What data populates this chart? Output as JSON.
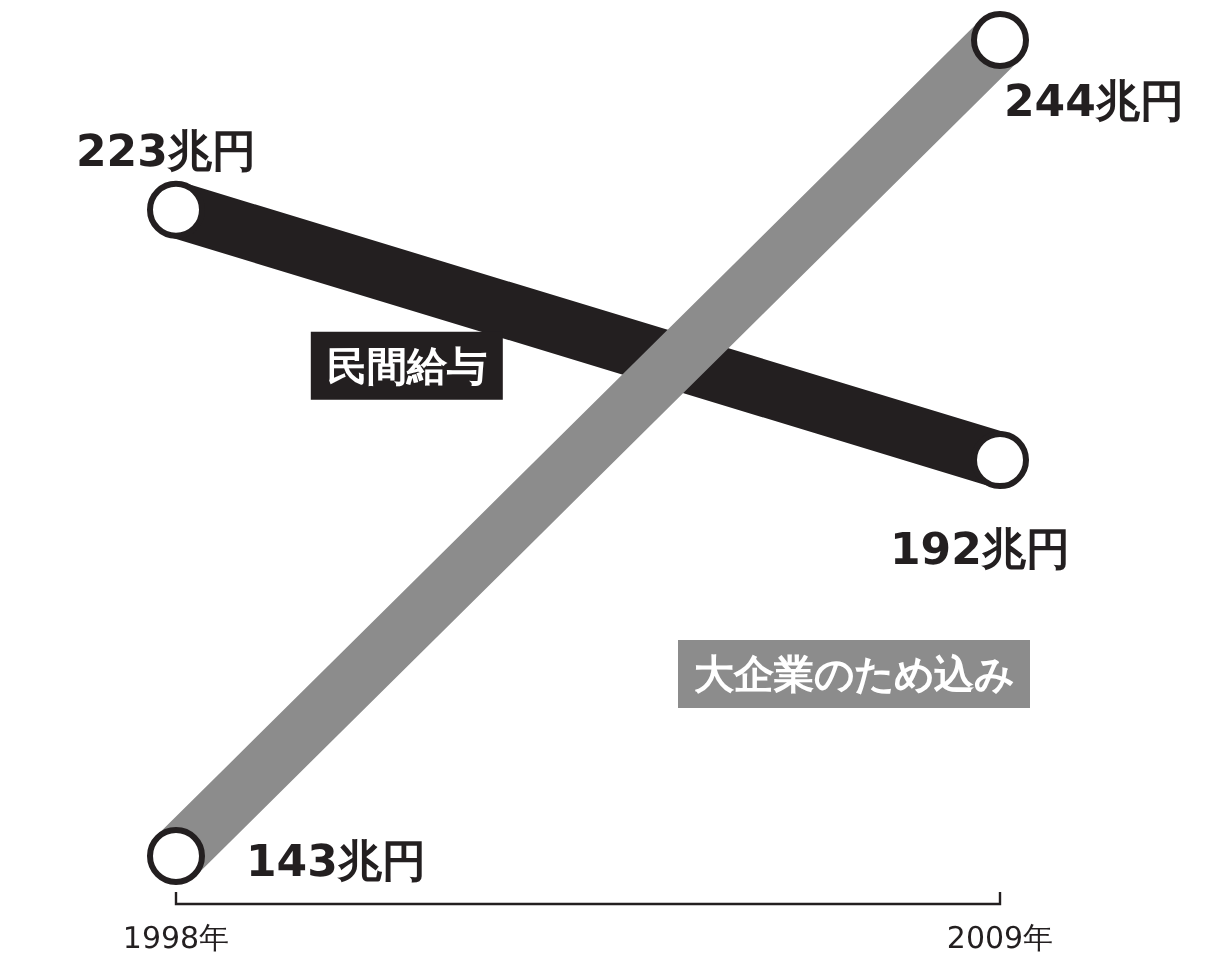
{
  "chart_data": {
    "type": "line",
    "categories": [
      "1998年",
      "2009年"
    ],
    "marker": "circle",
    "series": [
      {
        "name": "民間給与",
        "color": "#231f20",
        "values": [
          223,
          192
        ],
        "value_labels": [
          "223兆円",
          "192兆円"
        ]
      },
      {
        "name": "大企業のため込み",
        "color": "#8c8c8c",
        "values": [
          143,
          244
        ],
        "value_labels": [
          "143兆円",
          "244兆円"
        ]
      }
    ]
  }
}
